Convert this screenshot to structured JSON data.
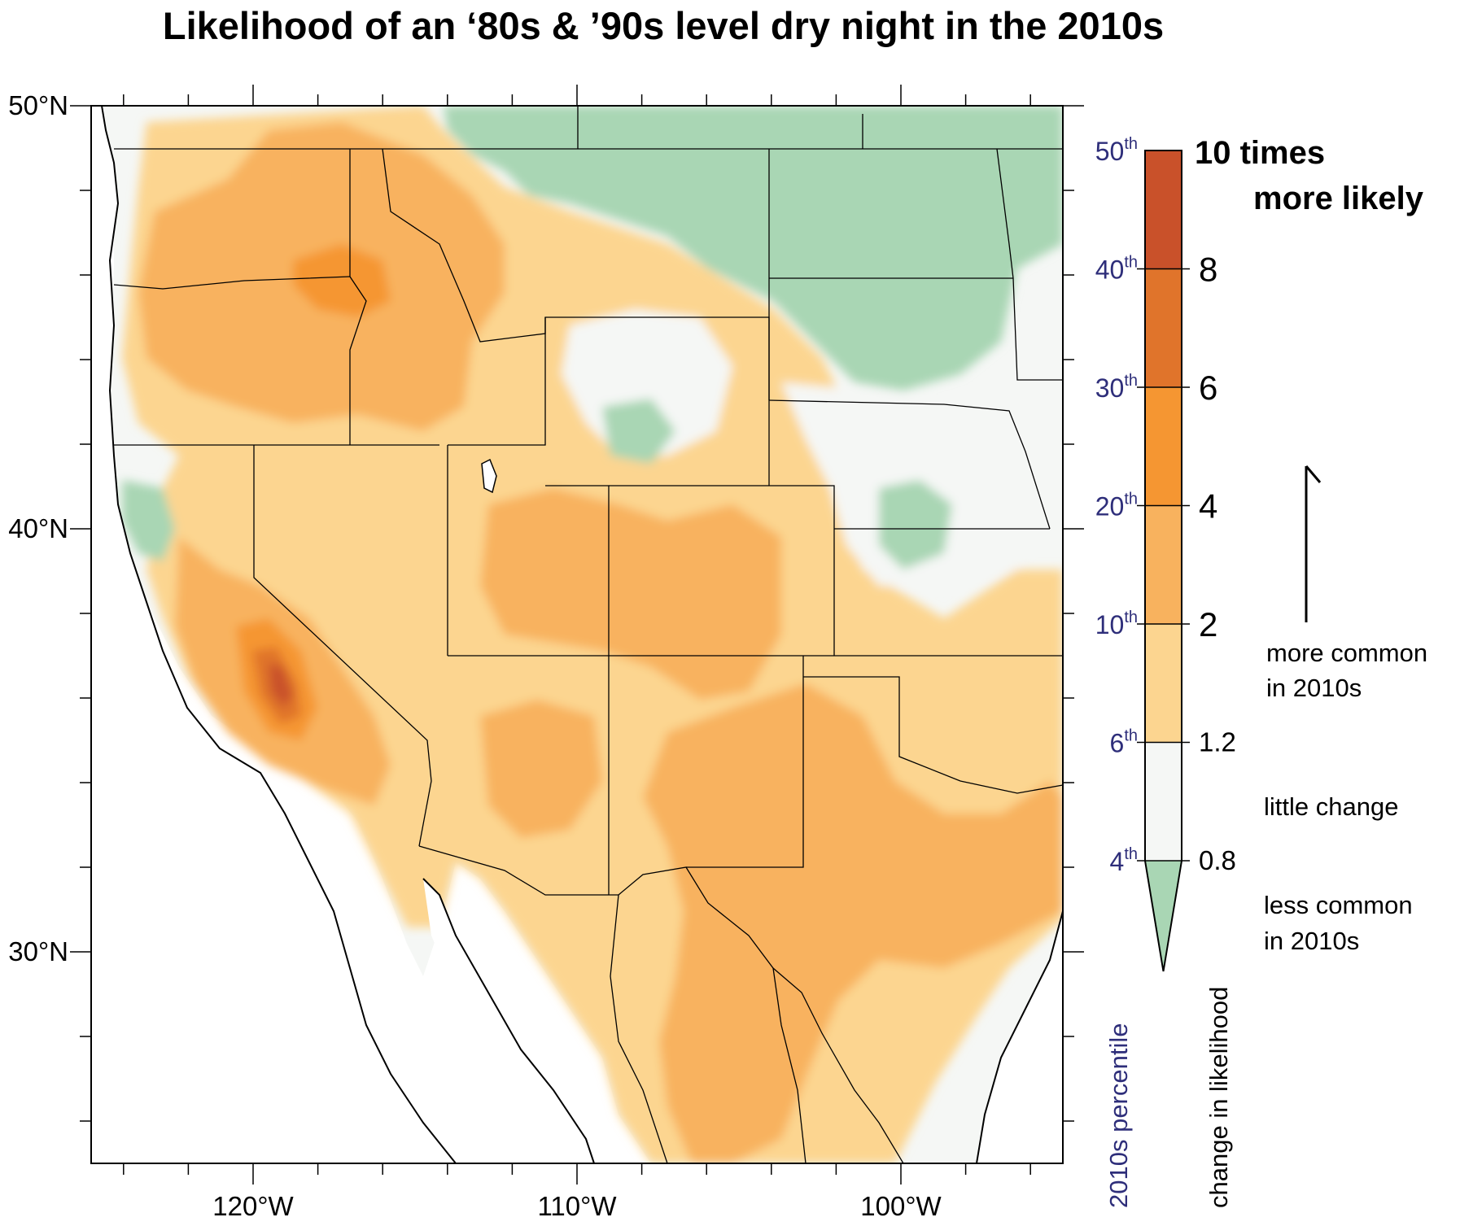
{
  "title": "Likelihood of an ‘80s & ’90s level dry night in the 2010s",
  "map": {
    "lat_labels": [
      {
        "lat": 50,
        "text": "50°N"
      },
      {
        "lat": 40,
        "text": "40°N"
      },
      {
        "lat": 30,
        "text": "30°N"
      }
    ],
    "lon_labels": [
      {
        "lon": -120,
        "text": "120°W"
      },
      {
        "lon": -110,
        "text": "110°W"
      },
      {
        "lon": -100,
        "text": "100°W"
      }
    ],
    "extent": {
      "lon_min": -125,
      "lon_max": -95,
      "lat_min": 25,
      "lat_max": 50
    }
  },
  "colorbar": {
    "percentile_axis_label": "2010s percentile",
    "likelihood_axis_label": "change in likelihood",
    "bins": [
      {
        "color": "#c9512a",
        "from": 8,
        "to": 10
      },
      {
        "color": "#e0742b",
        "from": 6,
        "to": 8
      },
      {
        "color": "#f59632",
        "from": 4,
        "to": 6
      },
      {
        "color": "#f8b25e",
        "from": 2,
        "to": 4
      },
      {
        "color": "#fcd590",
        "from": 1.2,
        "to": 2
      },
      {
        "color": "#f5f7f5",
        "from": 0.8,
        "to": 1.2
      },
      {
        "color": "#a9d6b4",
        "from": 0,
        "to": 0.8
      }
    ],
    "likelihood_ticks": [
      {
        "title_line1": "10 times",
        "title_line2": "more likely"
      },
      {
        "text": "8"
      },
      {
        "text": "6"
      },
      {
        "text": "4"
      },
      {
        "text": "2"
      },
      {
        "text": "1.2"
      },
      {
        "text": "0.8"
      }
    ],
    "percentile_ticks": [
      {
        "num": "50",
        "sup": "th"
      },
      {
        "num": "40",
        "sup": "th"
      },
      {
        "num": "30",
        "sup": "th"
      },
      {
        "num": "20",
        "sup": "th"
      },
      {
        "num": "10",
        "sup": "th"
      },
      {
        "num": "6",
        "sup": "th"
      },
      {
        "num": "4",
        "sup": "th"
      }
    ]
  },
  "annotations": {
    "more_common": [
      "more common",
      "in 2010s"
    ],
    "little_change": "little change",
    "less_common": [
      "less common",
      "in 2010s"
    ]
  },
  "colors": {
    "percentile_text": "#2e2e7a",
    "land_neutral": "#f5f7f5",
    "ocean": "#ffffff"
  }
}
